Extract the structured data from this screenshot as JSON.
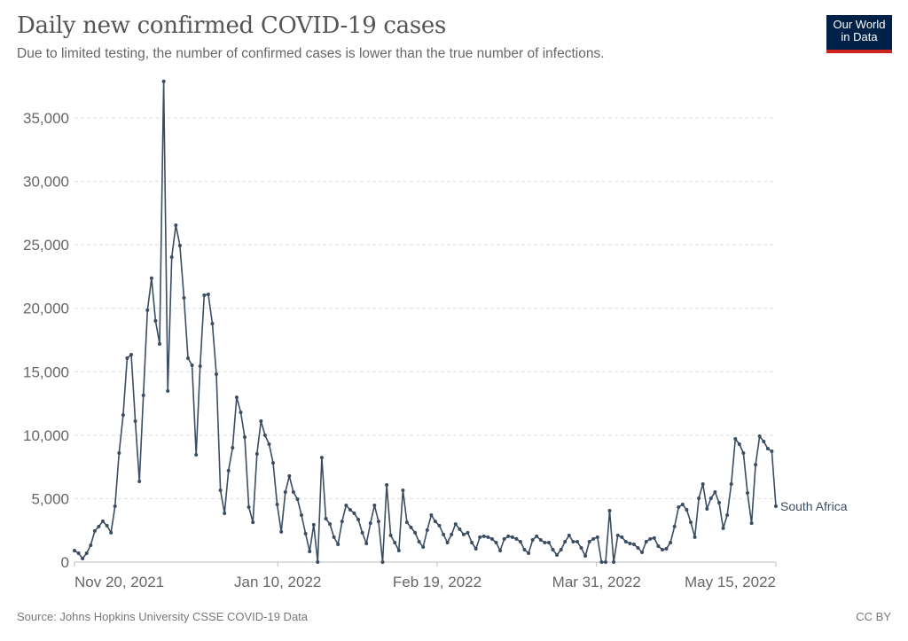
{
  "header": {
    "title": "Daily new confirmed COVID-19 cases",
    "subtitle": "Due to limited testing, the number of confirmed cases is lower than the true number of infections.",
    "logo_line1": "Our World",
    "logo_line2": "in Data"
  },
  "footer": {
    "source": "Source: Johns Hopkins University CSSE COVID-19 Data",
    "license": "CC BY"
  },
  "colors": {
    "series": "#3b4d63",
    "grid": "#dddddd",
    "logo_bg": "#002147",
    "logo_accent": "#ce261e"
  },
  "chart_data": {
    "type": "line",
    "title": "Daily new confirmed COVID-19 cases",
    "subtitle": "Due to limited testing, the number of confirmed cases is lower than the true number of infections.",
    "xlabel": "",
    "ylabel": "",
    "x_start": "2021-11-20",
    "x_end": "2022-05-15",
    "x_ticks": [
      "Nov 20, 2021",
      "Jan 10, 2022",
      "Feb 19, 2022",
      "Mar 31, 2022",
      "May 15, 2022"
    ],
    "x_tick_days": [
      0,
      51,
      91,
      131,
      176
    ],
    "y_ticks": [
      0,
      5000,
      10000,
      15000,
      20000,
      25000,
      30000,
      35000
    ],
    "y_tick_labels": [
      "0",
      "5,000",
      "10,000",
      "15,000",
      "20,000",
      "25,000",
      "30,000",
      "35,000"
    ],
    "ylim": [
      0,
      37800
    ],
    "grid": true,
    "legend": "end-of-line label",
    "series": [
      {
        "name": "South Africa",
        "values": [
          910,
          700,
          280,
          700,
          1330,
          2450,
          2800,
          3220,
          2870,
          2310,
          4400,
          8590,
          11590,
          16070,
          16350,
          11110,
          6360,
          13140,
          19850,
          22370,
          19010,
          17190,
          37880,
          13480,
          24030,
          26550,
          24940,
          20820,
          16070,
          15510,
          8450,
          15440,
          21030,
          21100,
          18790,
          14810,
          5660,
          3840,
          7200,
          9010,
          12990,
          11800,
          9850,
          4330,
          3140,
          8520,
          11110,
          9990,
          9290,
          7820,
          4540,
          2380,
          5520,
          6780,
          5520,
          4960,
          3700,
          2240,
          840,
          2940,
          0,
          8240,
          3420,
          3000,
          1960,
          1400,
          3210,
          4470,
          4120,
          3840,
          3350,
          2310,
          1470,
          3070,
          4470,
          3210,
          0,
          6080,
          2100,
          1540,
          910,
          5660,
          3140,
          2730,
          2310,
          1610,
          1190,
          2520,
          3700,
          3210,
          2870,
          2170,
          1540,
          2170,
          3000,
          2590,
          2170,
          2310,
          1540,
          1050,
          1960,
          2030,
          1960,
          1820,
          1540,
          910,
          1820,
          2030,
          1960,
          1820,
          1610,
          980,
          700,
          1750,
          2030,
          1750,
          1540,
          1540,
          980,
          560,
          980,
          1610,
          2100,
          1610,
          1610,
          1120,
          490,
          1610,
          1820,
          1960,
          0,
          0,
          4050,
          0,
          2100,
          1960,
          1610,
          1470,
          1400,
          1120,
          770,
          1610,
          1820,
          1890,
          1260,
          980,
          1050,
          1540,
          2800,
          4330,
          4540,
          4120,
          3140,
          1960,
          5030,
          6150,
          4190,
          5030,
          5520,
          4680,
          2660,
          3700,
          6150,
          9710,
          9290,
          8590,
          5450,
          3070,
          7680,
          9920,
          9500,
          8940,
          8730,
          4400
        ]
      }
    ]
  }
}
